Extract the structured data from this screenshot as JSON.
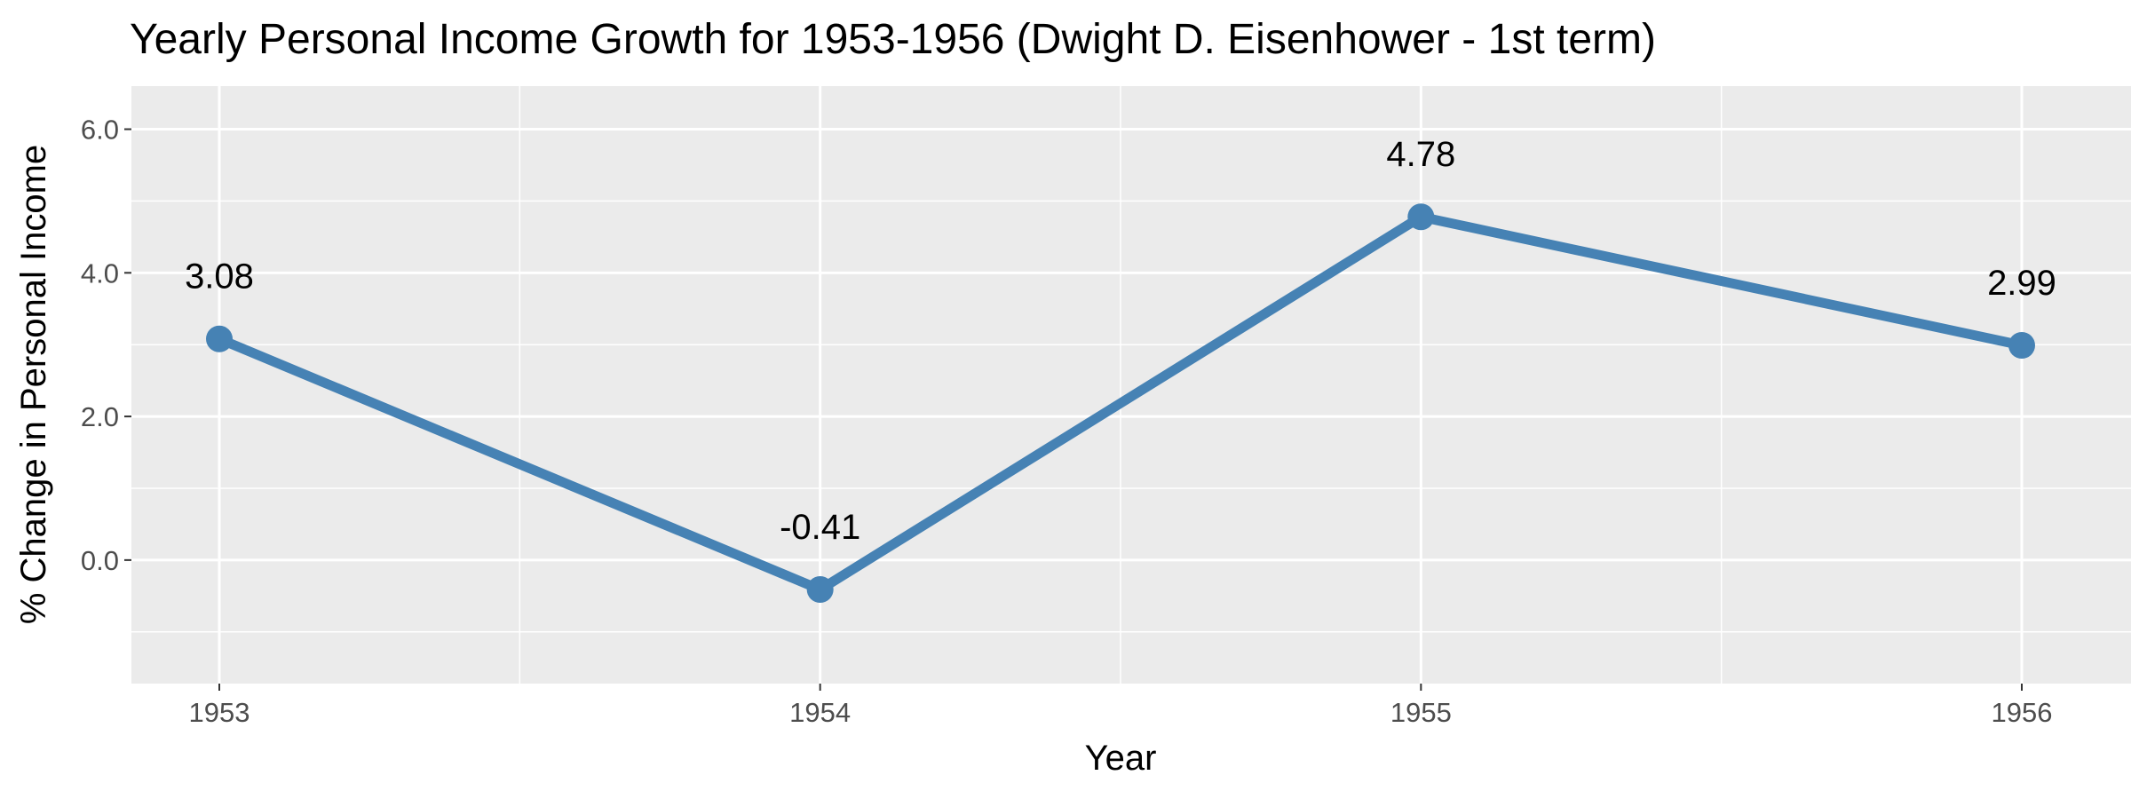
{
  "chart_data": {
    "type": "line",
    "title": "Yearly Personal Income Growth for 1953-1956 (Dwight D. Eisenhower - 1st term)",
    "xlabel": "Year",
    "ylabel": "% Change in Personal Income",
    "categories": [
      "1953",
      "1954",
      "1955",
      "1956"
    ],
    "series": [
      {
        "values": [
          3.08,
          -0.41,
          4.78,
          2.99
        ],
        "data_labels": [
          "3.08",
          "-0.41",
          "4.78",
          "2.99"
        ]
      }
    ],
    "ylim": [
      -1.72,
      6.6
    ],
    "y_ticks": [
      0.0,
      2.0,
      4.0,
      6.0
    ],
    "y_tick_labels": [
      "0.0",
      "2.0",
      "4.0",
      "6.0"
    ],
    "grid": true,
    "legend": "none",
    "colors": {
      "line": "#4682b4",
      "panel_background": "#ebebeb",
      "grid": "#ffffff",
      "tick_text": "#4d4d4d"
    }
  }
}
